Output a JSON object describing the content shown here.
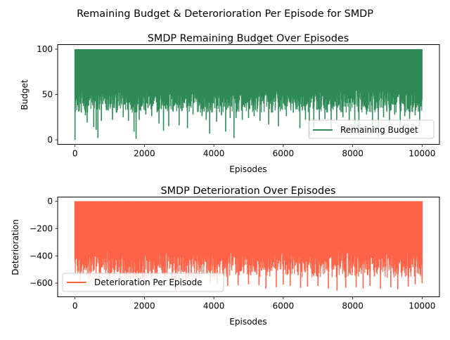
{
  "figure": {
    "suptitle": "Remaining Budget & Deterorioration Per Episode for SMDP"
  },
  "chart_data": [
    {
      "type": "line",
      "title": "SMDP Remaining Budget Over Episodes",
      "xlabel": "Episodes",
      "ylabel": "Budget",
      "xlim": [
        -500,
        10500
      ],
      "ylim": [
        -5,
        105
      ],
      "xticks": [
        0,
        2000,
        4000,
        6000,
        8000,
        10000
      ],
      "yticks": [
        0,
        50,
        100
      ],
      "legend_position": "lower-right",
      "series": [
        {
          "name": "Remaining Budget",
          "color": "#2e8b57",
          "episodes": 10000,
          "band": {
            "max": 100,
            "typical_min": 30,
            "min": 0
          },
          "dips": [
            [
              0,
              0
            ],
            [
              80,
              38
            ],
            [
              180,
              30
            ],
            [
              300,
              27
            ],
            [
              350,
              19
            ],
            [
              540,
              14
            ],
            [
              610,
              11
            ],
            [
              660,
              2
            ],
            [
              760,
              21
            ],
            [
              900,
              34
            ],
            [
              1080,
              22
            ],
            [
              1200,
              30
            ],
            [
              1390,
              25
            ],
            [
              1540,
              21
            ],
            [
              1700,
              9
            ],
            [
              1760,
              1
            ],
            [
              1850,
              22
            ],
            [
              2040,
              28
            ],
            [
              2210,
              26
            ],
            [
              2420,
              18
            ],
            [
              2550,
              10
            ],
            [
              2700,
              15
            ],
            [
              2830,
              31
            ],
            [
              3000,
              16
            ],
            [
              3240,
              13
            ],
            [
              3400,
              28
            ],
            [
              3660,
              26
            ],
            [
              3780,
              22
            ],
            [
              3880,
              7
            ],
            [
              4080,
              20
            ],
            [
              4220,
              27
            ],
            [
              4340,
              9
            ],
            [
              4470,
              24
            ],
            [
              4580,
              2
            ],
            [
              4640,
              24
            ],
            [
              4820,
              22
            ],
            [
              5000,
              24
            ],
            [
              5160,
              26
            ],
            [
              5330,
              21
            ],
            [
              5580,
              17
            ],
            [
              5660,
              30
            ],
            [
              5860,
              15
            ],
            [
              6090,
              26
            ],
            [
              6290,
              30
            ],
            [
              6480,
              13
            ],
            [
              6640,
              22
            ],
            [
              6750,
              2
            ],
            [
              6880,
              13
            ],
            [
              7040,
              20
            ],
            [
              7200,
              23
            ],
            [
              7380,
              9
            ],
            [
              7540,
              22
            ],
            [
              7720,
              25
            ],
            [
              7900,
              21
            ],
            [
              8060,
              18
            ],
            [
              8180,
              9
            ],
            [
              8400,
              28
            ],
            [
              8570,
              14
            ],
            [
              8740,
              3
            ],
            [
              8890,
              25
            ],
            [
              9060,
              19
            ],
            [
              9210,
              28
            ],
            [
              9370,
              8
            ],
            [
              9500,
              26
            ],
            [
              9640,
              23
            ],
            [
              9800,
              27
            ],
            [
              9930,
              14
            ]
          ]
        }
      ]
    },
    {
      "type": "line",
      "title": "SMDP Deterioration Over Episodes",
      "xlabel": "Episodes",
      "ylabel": "Deterioration",
      "xlim": [
        -500,
        10500
      ],
      "ylim": [
        -700,
        30
      ],
      "xticks": [
        0,
        2000,
        4000,
        6000,
        8000,
        10000
      ],
      "yticks": [
        0,
        -200,
        -400,
        -600
      ],
      "legend_position": "lower-left",
      "series": [
        {
          "name": "Deterioration Per Episode",
          "color": "#ff6347",
          "episodes": 10000,
          "band": {
            "max": 0,
            "typical_min": -560,
            "min": -660
          },
          "dips": [
            [
              0,
              -430
            ],
            [
              150,
              -590
            ],
            [
              400,
              -570
            ],
            [
              700,
              -585
            ],
            [
              1000,
              -560
            ],
            [
              1300,
              -585
            ],
            [
              1600,
              -575
            ],
            [
              2000,
              -590
            ],
            [
              2200,
              -570
            ],
            [
              2800,
              -600
            ],
            [
              2900,
              -660
            ],
            [
              3200,
              -590
            ],
            [
              3500,
              -595
            ],
            [
              3900,
              -600
            ],
            [
              4100,
              -605
            ],
            [
              4400,
              -620
            ],
            [
              4700,
              -615
            ],
            [
              5000,
              -610
            ],
            [
              5300,
              -615
            ],
            [
              5500,
              -640
            ],
            [
              5800,
              -630
            ],
            [
              6000,
              -610
            ],
            [
              6200,
              -620
            ],
            [
              6500,
              -635
            ],
            [
              6700,
              -625
            ],
            [
              7000,
              -620
            ],
            [
              7300,
              -640
            ],
            [
              7550,
              -655
            ],
            [
              7800,
              -635
            ],
            [
              8100,
              -630
            ],
            [
              8300,
              -640
            ],
            [
              8500,
              -620
            ],
            [
              8800,
              -640
            ],
            [
              9100,
              -630
            ],
            [
              9300,
              -645
            ],
            [
              9600,
              -625
            ],
            [
              9800,
              -610
            ],
            [
              10000,
              -600
            ]
          ]
        }
      ]
    }
  ]
}
